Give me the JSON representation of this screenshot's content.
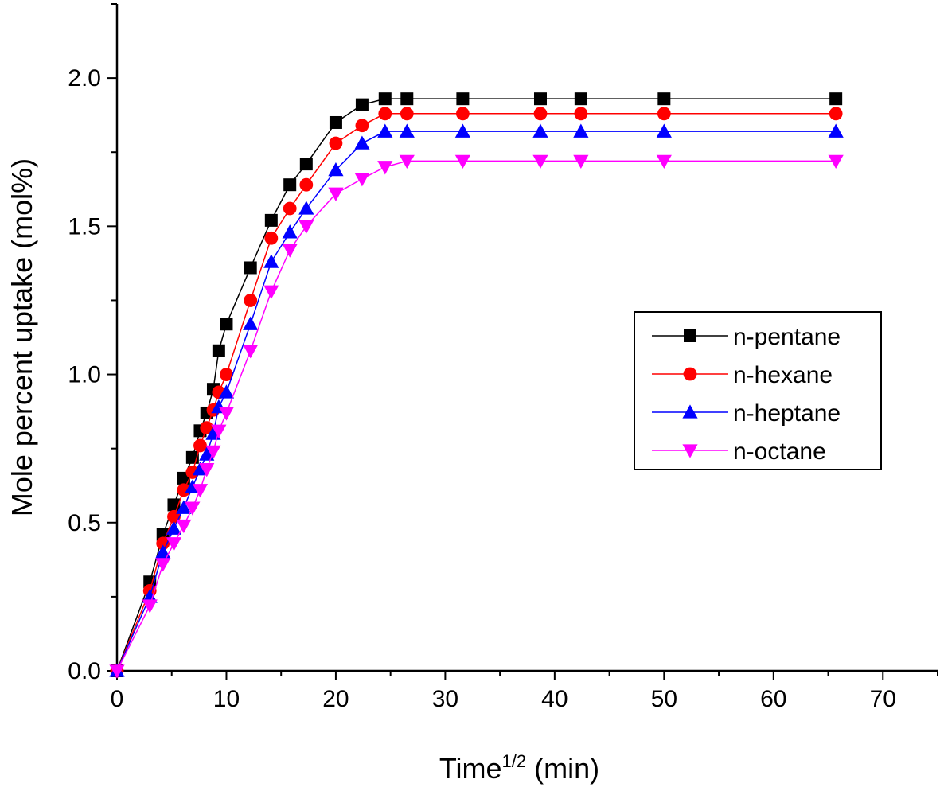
{
  "chart_data": {
    "type": "line",
    "xlabel": "Time",
    "xlabel_superscript": "1/2",
    "xlabel_unit": "(min)",
    "ylabel": "Mole percent uptake (mol%)",
    "xlim": [
      0,
      75
    ],
    "ylim": [
      0,
      2.25
    ],
    "xticks": [
      "0",
      "10",
      "20",
      "30",
      "40",
      "50",
      "60",
      "70"
    ],
    "yticks": [
      "0.0",
      "0.5",
      "1.0",
      "1.5",
      "2.0"
    ],
    "grid": false,
    "legend_position": "right-middle",
    "series": [
      {
        "name": "n-pentane",
        "color": "#000000",
        "marker": "square",
        "x": [
          0,
          3,
          4.2,
          5.2,
          6.1,
          6.9,
          7.6,
          8.2,
          8.8,
          9.3,
          10,
          12.2,
          14.1,
          15.8,
          17.3,
          20,
          22.4,
          24.5,
          26.5,
          31.6,
          38.7,
          42.4,
          50,
          65.7
        ],
        "y": [
          0,
          0.3,
          0.46,
          0.56,
          0.65,
          0.72,
          0.81,
          0.87,
          0.95,
          1.08,
          1.17,
          1.36,
          1.52,
          1.64,
          1.71,
          1.85,
          1.91,
          1.93,
          1.93,
          1.93,
          1.93,
          1.93,
          1.93,
          1.93
        ]
      },
      {
        "name": "n-hexane",
        "color": "#ff0000",
        "marker": "circle",
        "x": [
          0,
          3,
          4.2,
          5.2,
          6.1,
          6.9,
          7.6,
          8.2,
          8.8,
          9.3,
          10,
          12.2,
          14.1,
          15.8,
          17.3,
          20,
          22.4,
          24.5,
          26.5,
          31.6,
          38.7,
          42.4,
          50,
          65.7
        ],
        "y": [
          0,
          0.27,
          0.43,
          0.52,
          0.61,
          0.67,
          0.76,
          0.82,
          0.88,
          0.94,
          1.0,
          1.25,
          1.46,
          1.56,
          1.64,
          1.78,
          1.84,
          1.88,
          1.88,
          1.88,
          1.88,
          1.88,
          1.88,
          1.88
        ]
      },
      {
        "name": "n-heptane",
        "color": "#0000ff",
        "marker": "triangle-up",
        "x": [
          0,
          3,
          4.2,
          5.2,
          6.1,
          6.9,
          7.6,
          8.2,
          8.8,
          9.3,
          10,
          12.2,
          14.1,
          15.8,
          17.3,
          20,
          22.4,
          24.5,
          26.5,
          31.6,
          38.7,
          42.4,
          50,
          65.7
        ],
        "y": [
          0,
          0.25,
          0.4,
          0.48,
          0.55,
          0.62,
          0.68,
          0.73,
          0.8,
          0.89,
          0.94,
          1.17,
          1.38,
          1.48,
          1.56,
          1.69,
          1.78,
          1.82,
          1.82,
          1.82,
          1.82,
          1.82,
          1.82,
          1.82
        ]
      },
      {
        "name": "n-octane",
        "color": "#ff00ff",
        "marker": "triangle-down",
        "x": [
          0,
          3,
          4.2,
          5.2,
          6.1,
          6.9,
          7.6,
          8.2,
          8.8,
          9.3,
          10,
          12.2,
          14.1,
          15.8,
          17.3,
          20,
          22.4,
          24.5,
          26.5,
          31.6,
          38.7,
          42.4,
          50,
          65.7
        ],
        "y": [
          0,
          0.22,
          0.36,
          0.43,
          0.49,
          0.55,
          0.61,
          0.68,
          0.74,
          0.81,
          0.87,
          1.08,
          1.28,
          1.42,
          1.5,
          1.61,
          1.66,
          1.7,
          1.72,
          1.72,
          1.72,
          1.72,
          1.72,
          1.72
        ]
      }
    ]
  }
}
